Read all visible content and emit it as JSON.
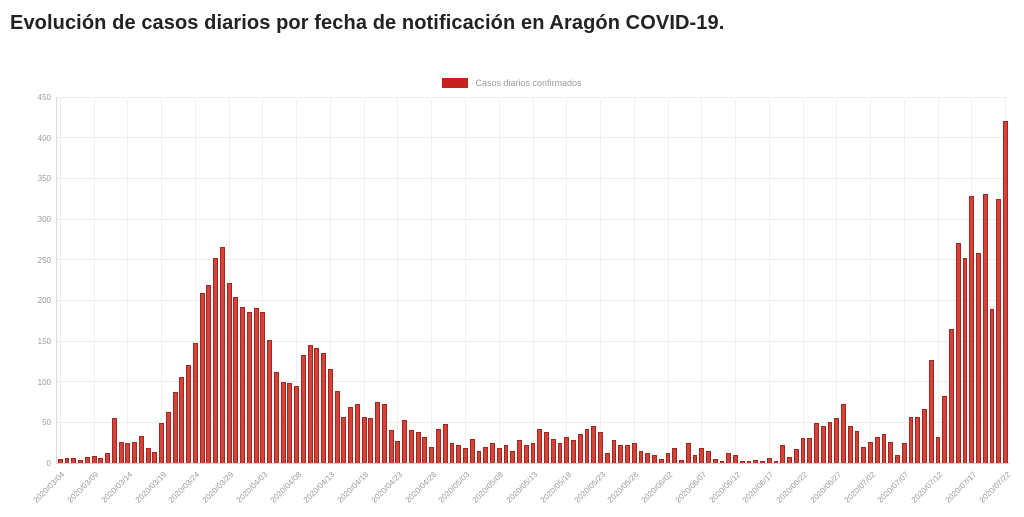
{
  "page": {
    "title": "Evolución de casos diarios por fecha de notificación en Aragón COVID-19."
  },
  "chart_data": {
    "type": "bar",
    "title": "Evolución de casos diarios por fecha de notificación en Aragón COVID-19.",
    "legend": [
      {
        "label": "Casos diarios confirmados",
        "color": "#c8201d"
      }
    ],
    "legend_position": "top-center",
    "grid": true,
    "bar_color": "#d5423a",
    "bar_border_color": "#a2271f",
    "xlabel": "",
    "ylabel": "",
    "ylim": [
      0,
      450
    ],
    "y_ticks": [
      0,
      50,
      100,
      150,
      200,
      250,
      300,
      350,
      400,
      450
    ],
    "x_tick_every": 5,
    "categories": [
      "2020/03/04",
      "2020/03/05",
      "2020/03/06",
      "2020/03/07",
      "2020/03/08",
      "2020/03/09",
      "2020/03/10",
      "2020/03/11",
      "2020/03/12",
      "2020/03/13",
      "2020/03/14",
      "2020/03/15",
      "2020/03/16",
      "2020/03/17",
      "2020/03/18",
      "2020/03/19",
      "2020/03/20",
      "2020/03/21",
      "2020/03/22",
      "2020/03/23",
      "2020/03/24",
      "2020/03/25",
      "2020/03/26",
      "2020/03/27",
      "2020/03/28",
      "2020/03/29",
      "2020/03/30",
      "2020/03/31",
      "2020/04/01",
      "2020/04/02",
      "2020/04/03",
      "2020/04/04",
      "2020/04/05",
      "2020/04/06",
      "2020/04/07",
      "2020/04/08",
      "2020/04/09",
      "2020/04/10",
      "2020/04/11",
      "2020/04/12",
      "2020/04/13",
      "2020/04/14",
      "2020/04/15",
      "2020/04/16",
      "2020/04/17",
      "2020/04/18",
      "2020/04/19",
      "2020/04/20",
      "2020/04/21",
      "2020/04/22",
      "2020/04/23",
      "2020/04/24",
      "2020/04/25",
      "2020/04/26",
      "2020/04/27",
      "2020/04/28",
      "2020/04/29",
      "2020/04/30",
      "2020/05/01",
      "2020/05/02",
      "2020/05/03",
      "2020/05/04",
      "2020/05/05",
      "2020/05/06",
      "2020/05/07",
      "2020/05/08",
      "2020/05/09",
      "2020/05/10",
      "2020/05/11",
      "2020/05/12",
      "2020/05/13",
      "2020/05/14",
      "2020/05/15",
      "2020/05/16",
      "2020/05/17",
      "2020/05/18",
      "2020/05/19",
      "2020/05/20",
      "2020/05/21",
      "2020/05/22",
      "2020/05/23",
      "2020/05/24",
      "2020/05/25",
      "2020/05/26",
      "2020/05/27",
      "2020/05/28",
      "2020/05/29",
      "2020/05/30",
      "2020/05/31",
      "2020/06/01",
      "2020/06/02",
      "2020/06/03",
      "2020/06/04",
      "2020/06/05",
      "2020/06/06",
      "2020/06/07",
      "2020/06/08",
      "2020/06/09",
      "2020/06/10",
      "2020/06/11",
      "2020/06/12",
      "2020/06/13",
      "2020/06/14",
      "2020/06/15",
      "2020/06/16",
      "2020/06/17",
      "2020/06/18",
      "2020/06/19",
      "2020/06/20",
      "2020/06/21",
      "2020/06/22",
      "2020/06/23",
      "2020/06/24",
      "2020/06/25",
      "2020/06/26",
      "2020/06/27",
      "2020/06/28",
      "2020/06/29",
      "2020/06/30",
      "2020/07/01",
      "2020/07/02",
      "2020/07/03",
      "2020/07/04",
      "2020/07/05",
      "2020/07/06",
      "2020/07/07",
      "2020/07/08",
      "2020/07/09",
      "2020/07/10",
      "2020/07/11",
      "2020/07/12",
      "2020/07/13",
      "2020/07/14",
      "2020/07/15",
      "2020/07/16",
      "2020/07/17",
      "2020/07/18",
      "2020/07/19",
      "2020/07/20",
      "2020/07/21",
      "2020/07/22"
    ],
    "values": [
      5,
      6,
      6,
      4,
      8,
      9,
      6,
      12,
      55,
      26,
      24,
      26,
      33,
      18,
      14,
      49,
      63,
      87,
      106,
      121,
      147,
      209,
      219,
      252,
      265,
      221,
      204,
      192,
      186,
      190,
      186,
      151,
      112,
      100,
      98,
      95,
      133,
      145,
      141,
      135,
      115,
      88,
      57,
      69,
      73,
      57,
      55,
      75,
      72,
      41,
      27,
      53,
      40,
      38,
      32,
      20,
      42,
      48,
      25,
      22,
      18,
      30,
      15,
      20,
      25,
      18,
      22,
      15,
      28,
      22,
      25,
      42,
      38,
      30,
      25,
      32,
      28,
      36,
      42,
      45,
      38,
      12,
      28,
      22,
      22,
      25,
      15,
      12,
      10,
      5,
      12,
      18,
      4,
      25,
      10,
      18,
      15,
      5,
      3,
      12,
      10,
      3,
      2,
      4,
      3,
      6,
      3,
      22,
      8,
      17,
      31,
      31,
      49,
      45,
      51,
      55,
      73,
      45,
      39,
      20,
      26,
      32,
      36,
      26,
      10,
      24,
      57,
      57,
      67,
      127,
      32,
      82,
      165,
      271,
      252,
      328,
      258,
      331,
      189,
      325,
      420
    ]
  }
}
